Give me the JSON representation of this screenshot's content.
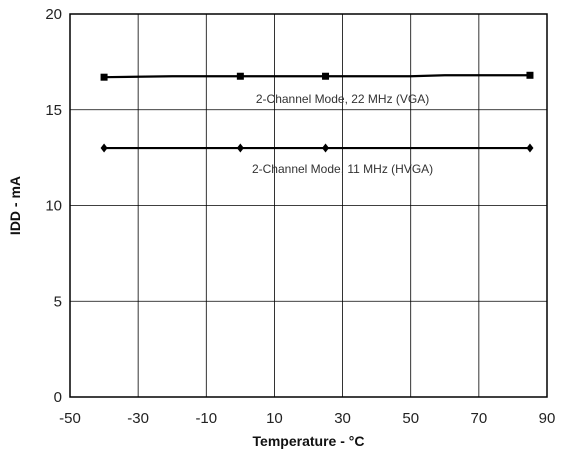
{
  "chart_data": {
    "type": "line",
    "title": "",
    "xlabel": "Temperature - °C",
    "ylabel": "IDD - mA",
    "xlim": [
      -50,
      90
    ],
    "ylim": [
      0,
      20
    ],
    "xticks": [
      -50,
      -30,
      -10,
      10,
      30,
      50,
      70,
      90
    ],
    "yticks": [
      0,
      5,
      10,
      15,
      20
    ],
    "grid": true,
    "legend": "none",
    "series": [
      {
        "label": "2-Channel Mode, 22 MHz (VGA)",
        "marker": "square",
        "color": "#000000",
        "x": [
          -40,
          0,
          25,
          85
        ],
        "y": [
          16.7,
          16.75,
          16.75,
          16.8
        ],
        "curve_x": [
          -40,
          -20,
          0,
          25,
          50,
          60,
          85
        ],
        "curve_y": [
          16.7,
          16.75,
          16.75,
          16.75,
          16.75,
          16.8,
          16.8
        ]
      },
      {
        "label": "2-Channel Mode, 11 MHz (HVGA)",
        "marker": "diamond",
        "color": "#000000",
        "x": [
          -40,
          0,
          25,
          85
        ],
        "y": [
          13.0,
          13.0,
          13.0,
          13.0
        ]
      }
    ]
  }
}
